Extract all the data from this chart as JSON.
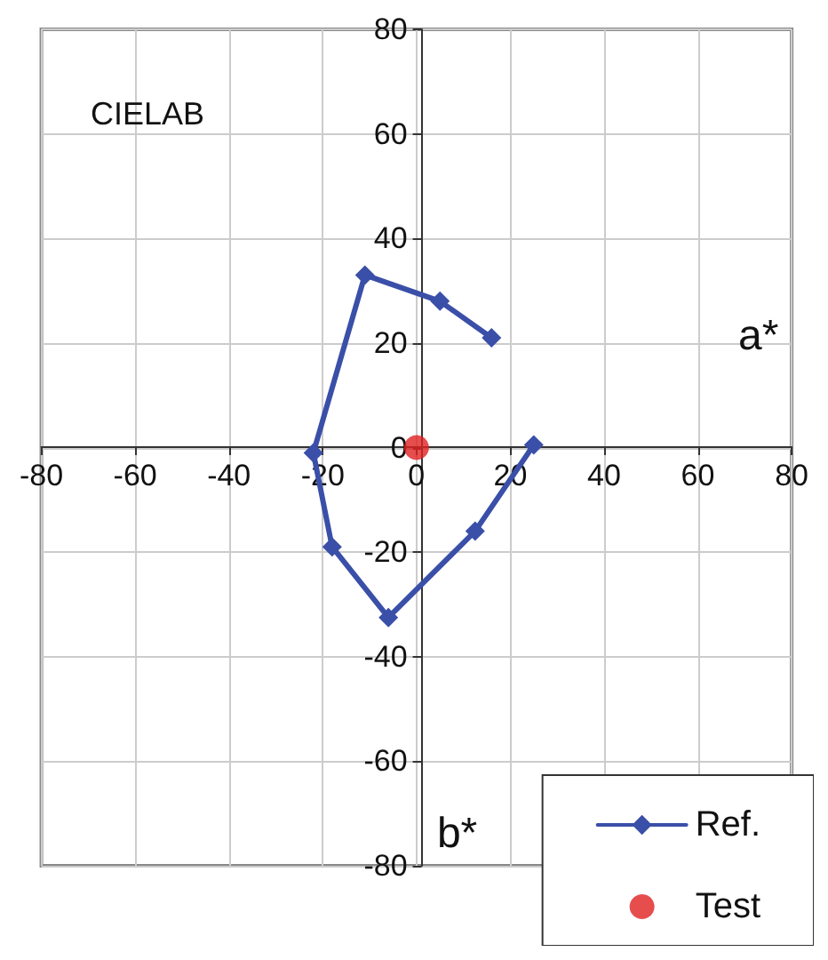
{
  "chart_data": {
    "type": "line",
    "title": "CIELAB",
    "xlabel": "a*",
    "ylabel": "b*",
    "series": [
      {
        "name": "Ref.",
        "color": "#3a4fa8",
        "marker": "diamond",
        "x": [
          16,
          5,
          -11,
          -22,
          -18,
          -6,
          12.5,
          25
        ],
        "values": [
          21,
          28,
          33,
          -1,
          -19,
          -32.5,
          -16,
          0.5
        ]
      },
      {
        "name": "Test",
        "color": "#e02020",
        "type": "scatter",
        "marker": "circle",
        "x": [
          0
        ],
        "values": [
          0
        ]
      }
    ],
    "xlim": [
      -80,
      80
    ],
    "xticks": [
      -80,
      -60,
      -40,
      -20,
      0,
      20,
      40,
      60,
      80
    ],
    "ylim": [
      -80,
      80
    ],
    "yticks": [
      -80,
      -60,
      -40,
      -20,
      0,
      20,
      40,
      60,
      80
    ],
    "grid": true,
    "legend": "bottom right",
    "line_style": "solid"
  }
}
